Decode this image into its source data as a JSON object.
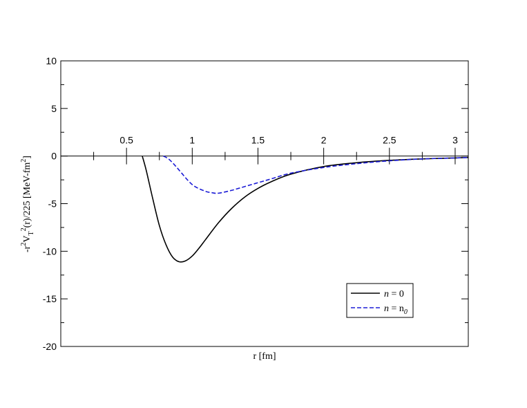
{
  "chart_data": {
    "type": "line",
    "title": "",
    "xlabel": "r  [fm]",
    "ylabel": {
      "prefix": "-r",
      "sup1": "2",
      "v": "V",
      "sub_t": "T",
      "sup2": "2",
      "suffix": "(r)/225   [MeV-fm",
      "sup3": "2",
      "close": "]"
    },
    "xlim": [
      0.0,
      3.1
    ],
    "ylim": [
      -20,
      10
    ],
    "x_ticks": [
      0.5,
      1,
      1.5,
      2,
      2.5,
      3
    ],
    "x_tick_labels": [
      "0.5",
      "1",
      "1.5",
      "2",
      "2.5",
      "3"
    ],
    "x_minor_ticks": [
      0.25,
      0.75,
      1.25,
      1.75,
      2.25,
      2.75
    ],
    "y_ticks": [
      10,
      5,
      0,
      -5,
      -10,
      -15,
      -20
    ],
    "y_tick_labels": [
      "10",
      "5",
      "0",
      "-5",
      "-10",
      "-15",
      "-20"
    ],
    "grid": false,
    "legend_position": "bottom-right",
    "series": [
      {
        "legend": {
          "lhs": "n",
          "eq": " = 0",
          "sub": ""
        },
        "color": "#000000",
        "dash": "solid",
        "x": [
          0.62,
          0.65,
          0.7,
          0.75,
          0.8,
          0.85,
          0.9,
          0.95,
          1.0,
          1.05,
          1.1,
          1.2,
          1.3,
          1.4,
          1.5,
          1.6,
          1.75,
          2.0,
          2.25,
          2.5,
          2.75,
          3.0,
          3.1
        ],
        "y": [
          0.0,
          -1.5,
          -4.5,
          -7.3,
          -9.3,
          -10.6,
          -11.1,
          -11.0,
          -10.5,
          -9.7,
          -8.8,
          -7.0,
          -5.5,
          -4.3,
          -3.4,
          -2.7,
          -1.9,
          -1.1,
          -0.7,
          -0.45,
          -0.3,
          -0.2,
          -0.15
        ]
      },
      {
        "legend": {
          "lhs": "n",
          "eq": " = n",
          "sub": "0"
        },
        "color": "#1c1cd6",
        "dash": "dashed",
        "x": [
          0.78,
          0.82,
          0.87,
          0.92,
          0.97,
          1.02,
          1.1,
          1.15,
          1.2,
          1.3,
          1.4,
          1.5,
          1.6,
          1.75,
          2.0,
          2.25,
          2.5,
          2.75,
          3.0,
          3.1
        ],
        "y": [
          0.0,
          -0.3,
          -1.0,
          -1.8,
          -2.6,
          -3.2,
          -3.7,
          -3.85,
          -3.9,
          -3.6,
          -3.2,
          -2.8,
          -2.4,
          -1.8,
          -1.2,
          -0.8,
          -0.5,
          -0.3,
          -0.2,
          -0.15
        ]
      }
    ]
  }
}
